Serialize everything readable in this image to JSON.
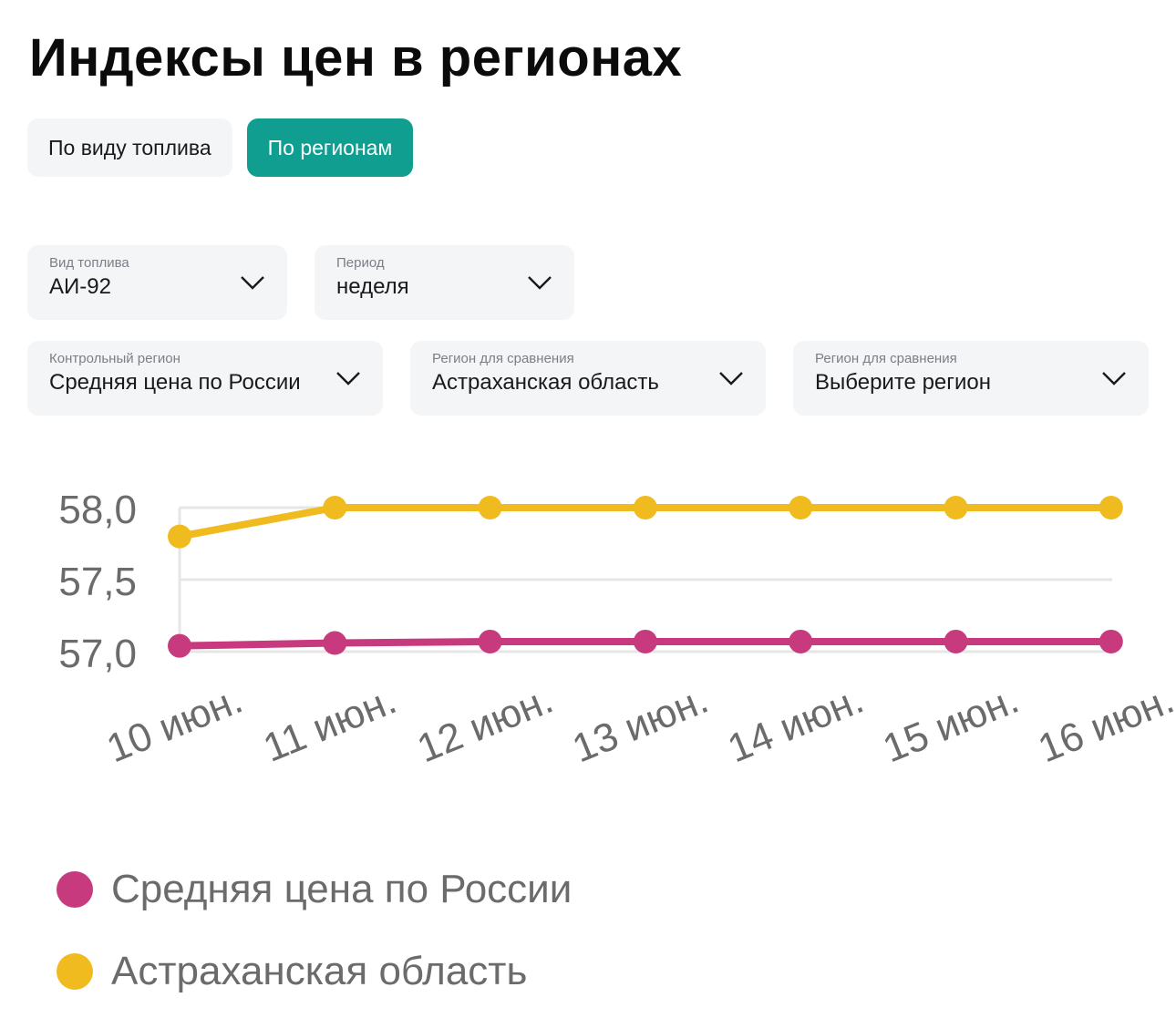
{
  "page": {
    "title": "Индексы цен в регионах"
  },
  "tabs": [
    {
      "label": "По виду топлива",
      "active": false
    },
    {
      "label": "По регионам",
      "active": true
    }
  ],
  "filters": {
    "fuel": {
      "label": "Вид топлива",
      "value": "АИ-92",
      "icon": "chevron-down-icon"
    },
    "period": {
      "label": "Период",
      "value": "неделя",
      "icon": "chevron-down-icon"
    },
    "control_region": {
      "label": "Контрольный регион",
      "value": "Средняя цена по России",
      "icon": "chevron-down-icon"
    },
    "compare_region_1": {
      "label": "Регион для сравнения",
      "value": "Астраханская область",
      "icon": "chevron-down-icon"
    },
    "compare_region_2": {
      "label": "Регион для сравнения",
      "value": "Выберите регион",
      "icon": "chevron-down-icon"
    }
  },
  "colors": {
    "accent": "#0f9e90",
    "russia": "#c83a7e",
    "astrakhan": "#f0bb1e"
  },
  "chart_data": {
    "type": "line",
    "categories": [
      "10 июн.",
      "11 июн.",
      "12 июн.",
      "13 июн.",
      "14 июн.",
      "15 июн.",
      "16 июн."
    ],
    "series": [
      {
        "name": "Средняя цена по России",
        "color": "#c83a7e",
        "values": [
          57.04,
          57.06,
          57.07,
          57.07,
          57.07,
          57.07,
          57.07
        ]
      },
      {
        "name": "Астраханская область",
        "color": "#f0bb1e",
        "values": [
          57.8,
          58.0,
          58.0,
          58.0,
          58.0,
          58.0,
          58.0
        ]
      }
    ],
    "yticks": [
      "57,0",
      "57,5",
      "58,0"
    ],
    "ytick_values": [
      57.0,
      57.5,
      58.0
    ],
    "ylim": [
      57.0,
      58.0
    ],
    "grid": true,
    "legend_position": "bottom-left"
  }
}
